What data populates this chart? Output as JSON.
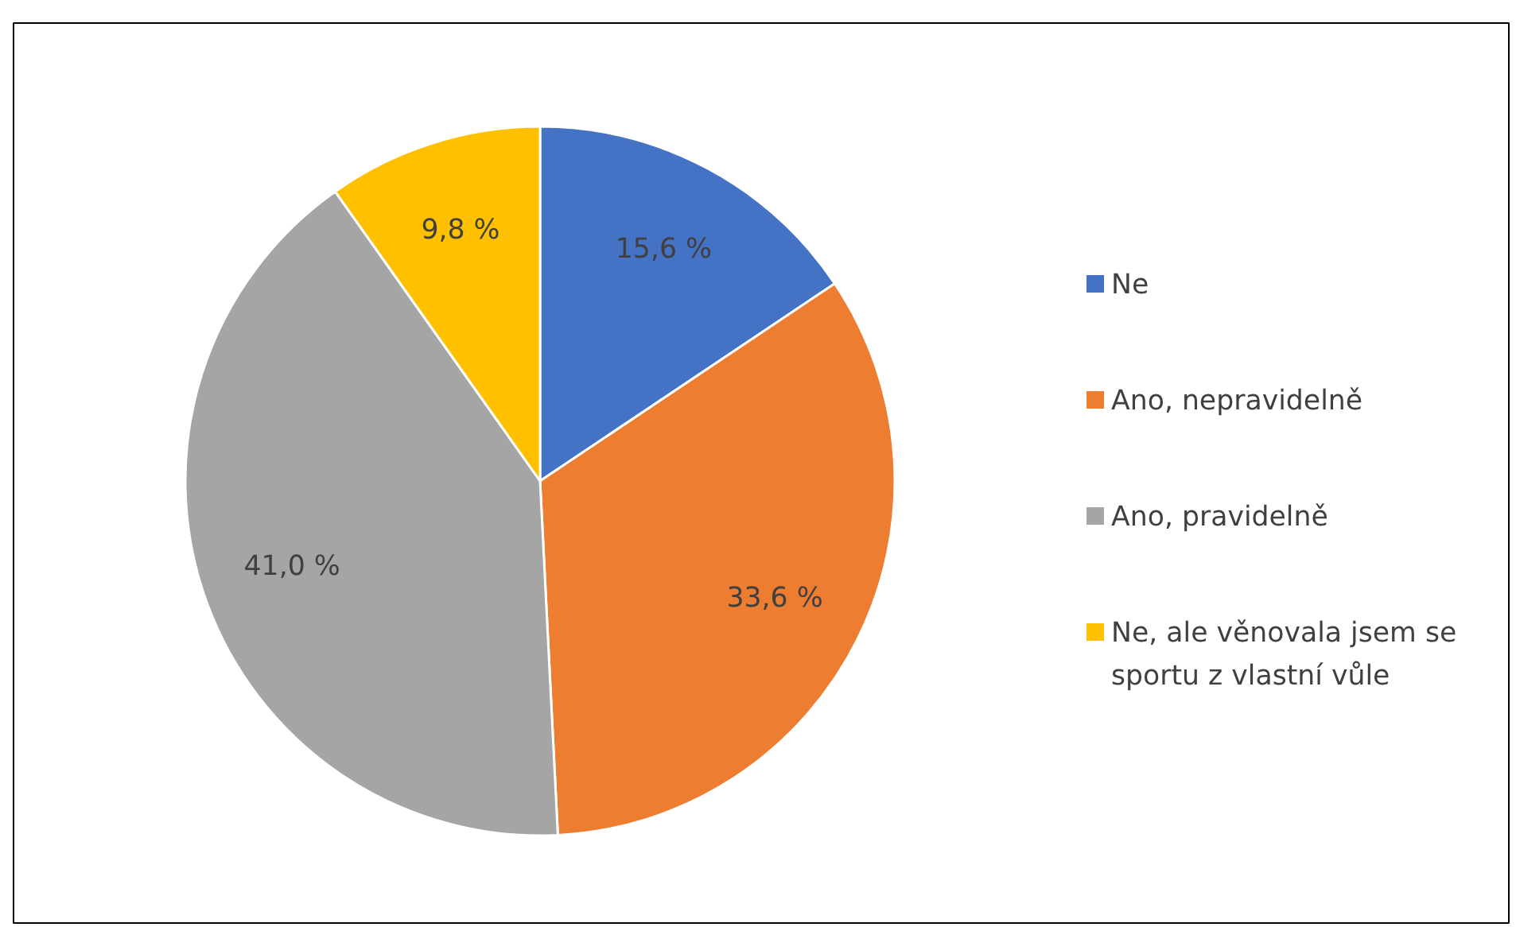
{
  "chart_data": {
    "type": "pie",
    "categories": [
      "Ne",
      "Ano, nepravidelně",
      "Ano, pravidelně",
      "Ne, ale věnovala jsem se sportu z vlastní vůle"
    ],
    "values": [
      15.6,
      33.6,
      41.0,
      9.8
    ],
    "colors": [
      "#4472c4",
      "#ed7d31",
      "#a5a5a5",
      "#ffc000"
    ],
    "value_labels": [
      "15,6 %",
      "33,6 %",
      "41,0 %",
      "9,8 %"
    ],
    "legend": "right"
  }
}
